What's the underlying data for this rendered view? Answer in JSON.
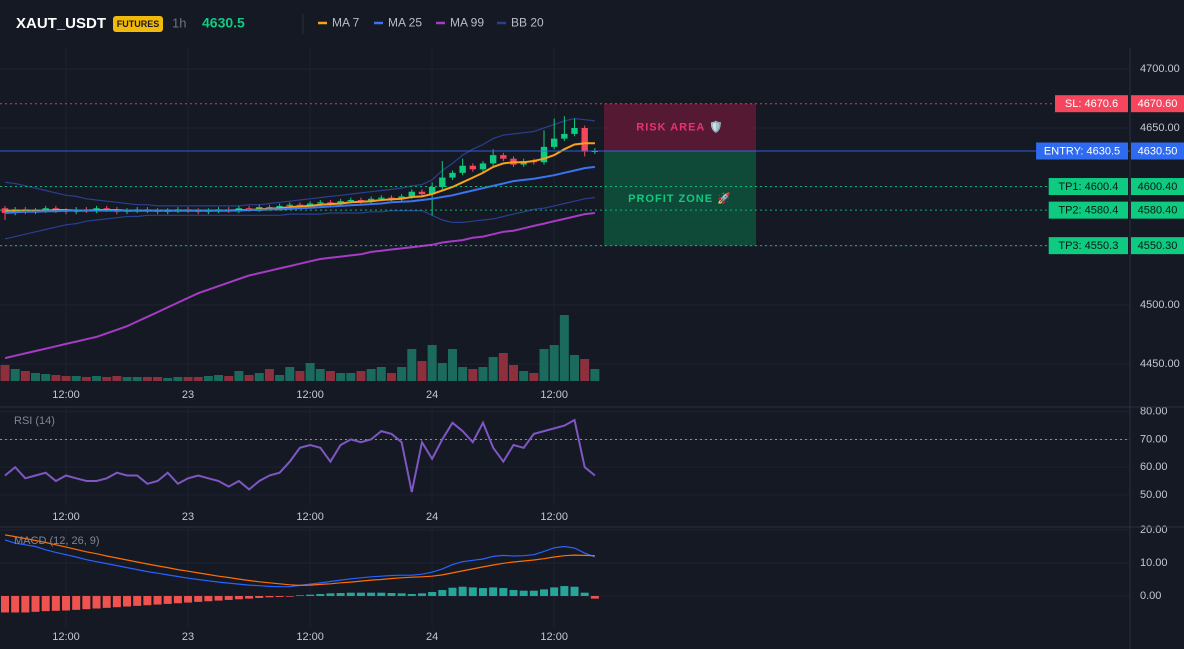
{
  "header": {
    "symbol": "XAUT_USDT",
    "badge": "FUTURES",
    "interval": "1h",
    "price": "4630.5"
  },
  "chart_data": [
    {
      "type": "candlestick",
      "categories": [
        null,
        null,
        null,
        null,
        null,
        null,
        "12:00",
        null,
        null,
        null,
        null,
        null,
        null,
        null,
        null,
        null,
        null,
        null,
        "23",
        null,
        null,
        null,
        null,
        null,
        null,
        null,
        null,
        null,
        null,
        null,
        "12:00",
        null,
        null,
        null,
        null,
        null,
        null,
        null,
        null,
        null,
        null,
        null,
        "24",
        null,
        null,
        null,
        null,
        null,
        null,
        null,
        null,
        null,
        null,
        null,
        "12:00",
        null,
        null,
        null,
        null
      ],
      "open": [
        4582,
        4578,
        4581,
        4579,
        4580,
        4582,
        4580,
        4579,
        4581,
        4580,
        4582,
        4581,
        4579,
        4580,
        4581,
        4580,
        4579,
        4580,
        4581,
        4580,
        4579,
        4580,
        4581,
        4580,
        4582,
        4581,
        4583,
        4582,
        4584,
        4585,
        4584,
        4586,
        4587,
        4586,
        4588,
        4589,
        4588,
        4590,
        4591,
        4590,
        4592,
        4596,
        4594,
        4600,
        4608,
        4612,
        4618,
        4615,
        4620,
        4627,
        4624,
        4619,
        4622,
        4621,
        4634,
        4641,
        4645,
        4650,
        4630
      ],
      "high": [
        4584,
        4583,
        4583,
        4582,
        4584,
        4584,
        4582,
        4583,
        4583,
        4584,
        4584,
        4583,
        4582,
        4583,
        4583,
        4582,
        4582,
        4583,
        4583,
        4582,
        4582,
        4583,
        4583,
        4584,
        4584,
        4585,
        4585,
        4586,
        4587,
        4587,
        4588,
        4589,
        4589,
        4590,
        4591,
        4591,
        4592,
        4593,
        4593,
        4594,
        4598,
        4598,
        4604,
        4622,
        4614,
        4624,
        4620,
        4622,
        4632,
        4629,
        4626,
        4624,
        4624,
        4648,
        4658,
        4660,
        4658,
        4652,
        4633
      ],
      "low": [
        4572,
        4576,
        4577,
        4577,
        4578,
        4578,
        4577,
        4577,
        4578,
        4578,
        4579,
        4577,
        4577,
        4578,
        4578,
        4577,
        4577,
        4578,
        4578,
        4577,
        4577,
        4578,
        4578,
        4578,
        4579,
        4579,
        4580,
        4580,
        4582,
        4582,
        4582,
        4584,
        4584,
        4584,
        4586,
        4586,
        4586,
        4588,
        4588,
        4588,
        4590,
        4592,
        4576,
        4598,
        4606,
        4610,
        4613,
        4613,
        4618,
        4622,
        4617,
        4617,
        4619,
        4619,
        4632,
        4639,
        4643,
        4626,
        4628
      ],
      "close": [
        4578,
        4581,
        4579,
        4580,
        4582,
        4580,
        4579,
        4581,
        4580,
        4582,
        4581,
        4579,
        4580,
        4581,
        4580,
        4579,
        4580,
        4581,
        4580,
        4579,
        4580,
        4581,
        4580,
        4582,
        4581,
        4583,
        4582,
        4584,
        4585,
        4584,
        4586,
        4587,
        4586,
        4588,
        4589,
        4588,
        4590,
        4591,
        4590,
        4592,
        4596,
        4594,
        4600,
        4608,
        4612,
        4618,
        4615,
        4620,
        4627,
        4624,
        4619,
        4622,
        4621,
        4634,
        4641,
        4645,
        4650,
        4630,
        4630.5
      ],
      "volume": [
        16,
        12,
        10,
        8,
        7,
        6,
        5,
        5,
        4,
        5,
        4,
        5,
        4,
        4,
        4,
        4,
        3,
        4,
        4,
        4,
        5,
        6,
        5,
        10,
        6,
        8,
        12,
        6,
        14,
        10,
        18,
        12,
        10,
        8,
        8,
        10,
        12,
        14,
        8,
        14,
        32,
        20,
        36,
        18,
        32,
        14,
        12,
        14,
        24,
        28,
        16,
        10,
        8,
        32,
        36,
        66,
        26,
        22,
        12
      ],
      "up_color": "#0ecb81",
      "down_color": "#f6465d",
      "volume_up_color": "#1a6b5e",
      "volume_down_color": "#8e2f3e",
      "series": [
        {
          "name": "MA 7",
          "color": "#f7a21b",
          "values": [
            4580,
            4580,
            4580,
            4580,
            4580,
            4580.5,
            4580.5,
            4580,
            4580,
            4580.5,
            4580.5,
            4580.5,
            4580,
            4580,
            4580,
            4580,
            4580,
            4580,
            4580,
            4580,
            4580,
            4580,
            4580,
            4580.5,
            4580.5,
            4581,
            4581.5,
            4582,
            4583,
            4583.5,
            4584,
            4585,
            4585.5,
            4586,
            4587,
            4587.5,
            4588,
            4589,
            4589.5,
            4590,
            4591.5,
            4592,
            4594,
            4597,
            4600,
            4604,
            4608,
            4612,
            4617,
            4620,
            4621,
            4621,
            4622,
            4624,
            4627,
            4632,
            4636,
            4637,
            4637
          ]
        },
        {
          "name": "MA 25",
          "color": "#3b73f0",
          "values": [
            4578,
            4578.5,
            4579,
            4579,
            4579.5,
            4579.5,
            4580,
            4580,
            4580,
            4580,
            4580,
            4580,
            4580,
            4580,
            4580,
            4580,
            4580,
            4580,
            4580,
            4580,
            4580,
            4580,
            4580,
            4580,
            4580.5,
            4580.5,
            4581,
            4581,
            4581.5,
            4582,
            4582.5,
            4583,
            4583.5,
            4584,
            4584.5,
            4585,
            4585.5,
            4586,
            4587,
            4587.5,
            4588,
            4589,
            4590,
            4591.5,
            4593,
            4595,
            4597,
            4599,
            4601,
            4603,
            4605,
            4606,
            4607,
            4608.5,
            4610,
            4612,
            4614,
            4616,
            4617
          ]
        },
        {
          "name": "MA 99",
          "color": "#a63bc4",
          "values": [
            4455,
            4457,
            4459,
            4461,
            4463,
            4465,
            4467,
            4469,
            4471,
            4473,
            4476,
            4479,
            4482,
            4486,
            4490,
            4494,
            4498,
            4502,
            4506,
            4510,
            4513,
            4516,
            4519,
            4522,
            4525,
            4527,
            4529,
            4531,
            4533,
            4535,
            4537,
            4539,
            4540,
            4541,
            4542,
            4543,
            4545,
            4546,
            4547,
            4548,
            4549,
            4550,
            4551,
            4553,
            4554,
            4555,
            4557,
            4558,
            4560,
            4562,
            4563,
            4565,
            4567,
            4569,
            4571,
            4573,
            4575,
            4577,
            4578
          ]
        },
        {
          "name": "BB 20",
          "color": "#2a3f8f",
          "upper": [
            4604,
            4603,
            4601,
            4599,
            4597,
            4595,
            4593,
            4592,
            4590,
            4589,
            4588,
            4587,
            4586,
            4585,
            4585,
            4584,
            4584,
            4584,
            4584,
            4584,
            4584,
            4584,
            4584,
            4584,
            4585,
            4585,
            4586,
            4587,
            4588,
            4589,
            4590,
            4591,
            4592,
            4593,
            4594,
            4595,
            4596,
            4597,
            4598,
            4599,
            4601,
            4602,
            4606,
            4614,
            4620,
            4627,
            4632,
            4636,
            4641,
            4644,
            4645,
            4646,
            4647,
            4650,
            4653,
            4656,
            4658,
            4657,
            4656
          ],
          "lower": [
            4556,
            4558,
            4560,
            4562,
            4564,
            4566,
            4568,
            4569,
            4571,
            4572,
            4573,
            4574,
            4575,
            4575,
            4576,
            4576,
            4576,
            4576,
            4576,
            4576,
            4576,
            4576,
            4576,
            4576,
            4576,
            4576,
            4576,
            4576,
            4577,
            4577,
            4577,
            4577,
            4578,
            4578,
            4578,
            4578,
            4579,
            4579,
            4580,
            4580,
            4580,
            4580,
            4576,
            4572,
            4570,
            4570,
            4571,
            4572,
            4573,
            4575,
            4577,
            4579,
            4581,
            4582,
            4584,
            4586,
            4588,
            4590,
            4591
          ]
        }
      ],
      "ylim": [
        4435.6,
        4717.8
      ],
      "yticks": [
        {
          "value": 4450,
          "label": "4450.00"
        },
        {
          "value": 4500,
          "label": "4500.00"
        },
        {
          "value": 4550,
          "label": "4550.00"
        },
        {
          "value": 4600,
          "label": "4600.00"
        },
        {
          "value": 4650,
          "label": "4650.00"
        },
        {
          "value": 4700,
          "label": "4700.00"
        }
      ],
      "levels": [
        {
          "label": "SL: 4670.6",
          "price_label": "4670.60",
          "value": 4670.6,
          "color": "#f6465d",
          "style": "dotted"
        },
        {
          "label": "ENTRY: 4630.5",
          "price_label": "4630.50",
          "value": 4630.5,
          "color": "#2f6bf0",
          "style": "solid"
        },
        {
          "label": "TP1: 4600.4",
          "price_label": "4600.40",
          "value": 4600.4,
          "color": "#0ecb81",
          "style": "dotted"
        },
        {
          "label": "TP2: 4580.4",
          "price_label": "4580.40",
          "value": 4580.4,
          "color": "#0ecb81",
          "style": "dotted"
        },
        {
          "label": "TP3: 4550.3",
          "price_label": "4550.30",
          "value": 4550.3,
          "color": "#0ecb81",
          "style": "dotted"
        }
      ],
      "zones": [
        {
          "label": "RISK AREA 🛡️",
          "top": 4670.6,
          "bottom": 4630.5,
          "color": "#6b1a3a",
          "text_color": "#e8336e"
        },
        {
          "label": "PROFIT ZONE 🚀",
          "top": 4630.5,
          "bottom": 4550.3,
          "color": "#0d5a3e",
          "text_color": "#0ecb81"
        }
      ],
      "grid": true
    },
    {
      "type": "line",
      "title": "RSI (14)",
      "categories": [
        null,
        null,
        null,
        null,
        null,
        null,
        "12:00",
        null,
        null,
        null,
        null,
        null,
        null,
        null,
        null,
        null,
        null,
        null,
        "23",
        null,
        null,
        null,
        null,
        null,
        null,
        null,
        null,
        null,
        null,
        null,
        "12:00",
        null,
        null,
        null,
        null,
        null,
        null,
        null,
        null,
        null,
        null,
        null,
        "24",
        null,
        null,
        null,
        null,
        null,
        null,
        null,
        null,
        null,
        null,
        null,
        "12:00",
        null,
        null,
        null,
        null
      ],
      "series": [
        {
          "color": "#7e57c2",
          "values": [
            57,
            60,
            56,
            57,
            58,
            55,
            57,
            56,
            55,
            55,
            56,
            58,
            57,
            57,
            54,
            55,
            58,
            54,
            56,
            57,
            56,
            55,
            53,
            55,
            52,
            55,
            57,
            58,
            62,
            67,
            68,
            67,
            62,
            68,
            70,
            69,
            70,
            73,
            72,
            69,
            51,
            69,
            63,
            70,
            76,
            73,
            69,
            76,
            67,
            62,
            68,
            67,
            72,
            73,
            74,
            75,
            77,
            60,
            57
          ]
        }
      ],
      "overbought": 70,
      "ylim": [
        46,
        81.7
      ],
      "yticks": [
        {
          "value": 50,
          "label": "50.00"
        },
        {
          "value": 60,
          "label": "60.00"
        },
        {
          "value": 70,
          "label": "70.00"
        },
        {
          "value": 80,
          "label": "80.00"
        }
      ],
      "grid": true
    },
    {
      "type": "macd",
      "title": "MACD (12, 26, 9)",
      "categories": [
        null,
        null,
        null,
        null,
        null,
        null,
        "12:00",
        null,
        null,
        null,
        null,
        null,
        null,
        null,
        null,
        null,
        null,
        null,
        "23",
        null,
        null,
        null,
        null,
        null,
        null,
        null,
        null,
        null,
        null,
        null,
        "12:00",
        null,
        null,
        null,
        null,
        null,
        null,
        null,
        null,
        null,
        null,
        null,
        "24",
        null,
        null,
        null,
        null,
        null,
        null,
        null,
        null,
        null,
        null,
        null,
        "12:00",
        null,
        null,
        null,
        null
      ],
      "histogram": {
        "positive_color": "#26a69a",
        "negative_color": "#ef5350",
        "values": [
          -5,
          -5,
          -5,
          -4.8,
          -4.6,
          -4.5,
          -4.4,
          -4.2,
          -4,
          -3.8,
          -3.6,
          -3.4,
          -3.2,
          -3,
          -2.8,
          -2.6,
          -2.4,
          -2.2,
          -2,
          -1.8,
          -1.6,
          -1.4,
          -1.2,
          -1,
          -0.8,
          -0.6,
          -0.4,
          -0.3,
          -0.2,
          0.2,
          0.4,
          0.6,
          0.8,
          0.9,
          1,
          1,
          1,
          1,
          0.9,
          0.8,
          0.6,
          0.8,
          1.2,
          1.8,
          2.5,
          2.8,
          2.6,
          2.4,
          2.6,
          2.4,
          1.8,
          1.6,
          1.6,
          2,
          2.6,
          3,
          2.8,
          1,
          -0.8
        ]
      },
      "series": [
        {
          "color": "#2962ff",
          "values": [
            17,
            16,
            15.5,
            15,
            14,
            13.2,
            12.5,
            11.8,
            11,
            10.4,
            9.8,
            9.2,
            8.6,
            8,
            7.4,
            6.9,
            6.4,
            5.9,
            5.4,
            5,
            4.6,
            4.2,
            3.9,
            3.6,
            3.3,
            3.1,
            2.9,
            2.8,
            2.8,
            3.2,
            3.6,
            4,
            4.4,
            4.8,
            5.2,
            5.5,
            5.8,
            6,
            6.2,
            6.3,
            6.3,
            6.6,
            7.2,
            8.2,
            9.5,
            10.4,
            10.8,
            11.2,
            12,
            12.3,
            12.1,
            12.2,
            12.5,
            13.5,
            14.6,
            15,
            14.5,
            13,
            11.8
          ]
        },
        {
          "color": "#ff6d00",
          "values": [
            18.5,
            18,
            17.4,
            16.8,
            16.2,
            15.5,
            14.8,
            14.1,
            13.4,
            12.8,
            12.1,
            11.5,
            10.9,
            10.3,
            9.7,
            9.1,
            8.6,
            8,
            7.5,
            7,
            6.5,
            6,
            5.6,
            5.1,
            4.7,
            4.3,
            4,
            3.7,
            3.4,
            3.2,
            3.3,
            3.5,
            3.7,
            4,
            4.2,
            4.5,
            4.8,
            5,
            5.3,
            5.5,
            5.7,
            5.8,
            6,
            6.4,
            7,
            7.6,
            8.2,
            8.8,
            9.4,
            9.9,
            10.3,
            10.6,
            10.9,
            11.3,
            11.8,
            12.2,
            12.4,
            12.3,
            12.2
          ]
        }
      ],
      "ylim": [
        -9.4,
        20.9
      ],
      "yticks": [
        {
          "value": 0,
          "label": "0.00"
        },
        {
          "value": 10,
          "label": "10.00"
        },
        {
          "value": 20,
          "label": "20.00"
        }
      ],
      "grid": true
    }
  ]
}
